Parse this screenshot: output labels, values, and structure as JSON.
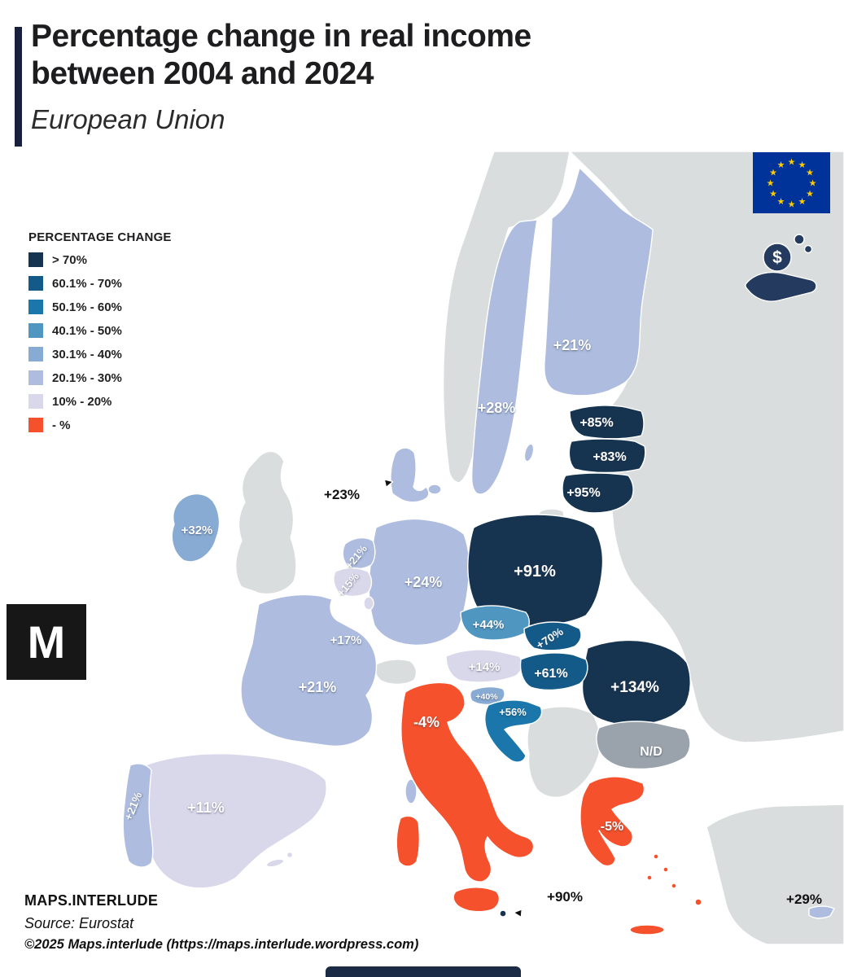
{
  "title": {
    "line1": "Percentage change in real income",
    "line2": "between 2004 and 2024",
    "subtitle": "European Union"
  },
  "legend": {
    "heading": "PERCENTAGE CHANGE",
    "items": [
      {
        "label": "> 70%",
        "category": "cat0"
      },
      {
        "label": "60.1% - 70%",
        "category": "cat1"
      },
      {
        "label": "50.1% - 60%",
        "category": "cat2"
      },
      {
        "label": "40.1% - 50%",
        "category": "cat3"
      },
      {
        "label": "30.1% - 40%",
        "category": "cat4"
      },
      {
        "label": "20.1% - 30%",
        "category": "cat5"
      },
      {
        "label": "10% - 20%",
        "category": "cat6"
      },
      {
        "label": "- %",
        "category": "cat7"
      }
    ]
  },
  "palette": {
    "cat0": "#16334f",
    "cat1": "#145a88",
    "cat2": "#1b76ab",
    "cat3": "#4f97c0",
    "cat4": "#88abd4",
    "cat5": "#adbcdf",
    "cat6": "#d9d7ea",
    "cat7": "#f4512c",
    "nd": "#9aa2ab",
    "noneu": "#d9dddd",
    "sea": "#ffffff",
    "accent_bar": "#18203c",
    "flag_blue": "#003399",
    "star_gold": "#ffcc00",
    "icon_navy": "#243a5e"
  },
  "map": {
    "countries": [
      {
        "id": "finland",
        "name": "Finland",
        "label": "+21%",
        "category": "cat5"
      },
      {
        "id": "sweden",
        "name": "Sweden",
        "label": "+28%",
        "category": "cat5"
      },
      {
        "id": "estonia",
        "name": "Estonia",
        "label": "+85%",
        "category": "cat0"
      },
      {
        "id": "latvia",
        "name": "Latvia",
        "label": "+83%",
        "category": "cat0"
      },
      {
        "id": "lithuania",
        "name": "Lithuania",
        "label": "+95%",
        "category": "cat0"
      },
      {
        "id": "poland",
        "name": "Poland",
        "label": "+91%",
        "category": "cat0"
      },
      {
        "id": "germany",
        "name": "Germany",
        "label": "+24%",
        "category": "cat5"
      },
      {
        "id": "denmark",
        "name": "Denmark",
        "label": "+23%",
        "category": "cat5"
      },
      {
        "id": "netherlands",
        "name": "Netherlands",
        "label": "+21%",
        "category": "cat5"
      },
      {
        "id": "belgium",
        "name": "Belgium",
        "label": "+15%",
        "category": "cat6"
      },
      {
        "id": "luxembourg",
        "name": "Luxembourg",
        "label": "+17%",
        "category": "cat6"
      },
      {
        "id": "france",
        "name": "France",
        "label": "+21%",
        "category": "cat5"
      },
      {
        "id": "ireland",
        "name": "Ireland",
        "label": "+32%",
        "category": "cat4"
      },
      {
        "id": "portugal",
        "name": "Portugal",
        "label": "+21%",
        "category": "cat5"
      },
      {
        "id": "spain",
        "name": "Spain",
        "label": "+11%",
        "category": "cat6"
      },
      {
        "id": "italy",
        "name": "Italy",
        "label": "-4%",
        "category": "cat7"
      },
      {
        "id": "czechia",
        "name": "Czechia",
        "label": "+44%",
        "category": "cat3"
      },
      {
        "id": "austria",
        "name": "Austria",
        "label": "+14%",
        "category": "cat6"
      },
      {
        "id": "slovakia",
        "name": "Slovakia",
        "label": "+70%",
        "category": "cat1"
      },
      {
        "id": "hungary",
        "name": "Hungary",
        "label": "+61%",
        "category": "cat1"
      },
      {
        "id": "slovenia",
        "name": "Slovenia",
        "label": "+40%",
        "category": "cat4"
      },
      {
        "id": "croatia",
        "name": "Croatia",
        "label": "+56%",
        "category": "cat2"
      },
      {
        "id": "romania",
        "name": "Romania",
        "label": "+134%",
        "category": "cat0"
      },
      {
        "id": "bulgaria",
        "name": "Bulgaria",
        "label": "N/D",
        "category": "nd"
      },
      {
        "id": "greece",
        "name": "Greece",
        "label": "-5%",
        "category": "cat7"
      },
      {
        "id": "malta",
        "name": "Malta",
        "label": "+90%",
        "category": "cat0"
      },
      {
        "id": "cyprus",
        "name": "Cyprus",
        "label": "+29%",
        "category": "cat5"
      }
    ]
  },
  "logo": {
    "letter": "M"
  },
  "footer": {
    "brand": "MAPS.INTERLUDE",
    "source": "Source: Eurostat",
    "copyright": "©2025 Maps.interlude (https://maps.interlude.wordpress.com)"
  }
}
